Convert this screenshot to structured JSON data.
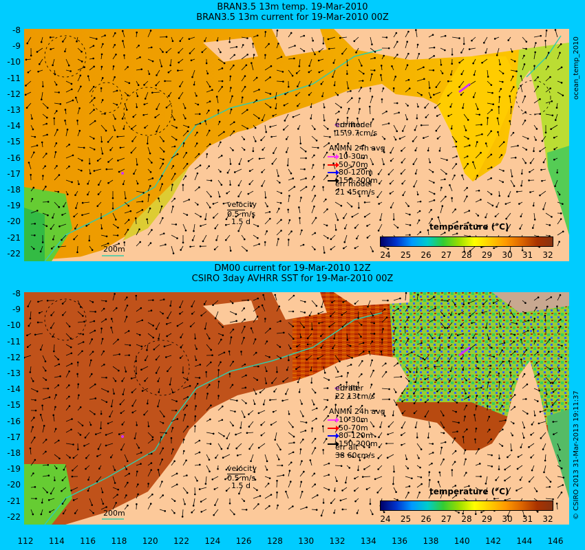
{
  "top": {
    "title1": "BRAN3.5 13m temp. 19-Mar-2010",
    "title2": "BRAN3.5 13m current for 19-Mar-2010 00Z",
    "drifter_label": "drifter",
    "err_label": "err model",
    "err_value": "15 9.7cm/s",
    "anmn_title": "ANMN 24h avg",
    "depth_bins": [
      "10-30m",
      "50-70m",
      "80-120m",
      "150-200m"
    ],
    "err2_label": "err model",
    "err2_value": "21 45cm/s"
  },
  "bottom": {
    "title1": "DM00 current for 19-Mar-2010 12Z",
    "title2": "CSIRO 3day AVHRR SST for 19-Mar-2010 00Z",
    "drifter_label": "drifter",
    "err_label": "err alt",
    "err_value": "22 13cm/s",
    "anmn_title": "ANMN 24h avg",
    "depth_bins": [
      "10-30m",
      "50-70m",
      "80-120m",
      "150-200m"
    ],
    "err2_label": "err alt",
    "err2_value": "38 60cm/s"
  },
  "velocity": {
    "label": "velocity",
    "scale": "0.5 m/s",
    "duration": "1.5 d"
  },
  "contour_label": "200m",
  "colorbar": {
    "title": "temperature (°C)",
    "ticks": [
      "24",
      "25",
      "26",
      "27",
      "28",
      "29",
      "30",
      "31",
      "32"
    ],
    "colors": [
      "#000066",
      "#0033cc",
      "#0099ff",
      "#00cccc",
      "#33cc33",
      "#99dd00",
      "#ffff00",
      "#ffcc00",
      "#ff9900",
      "#dd6600",
      "#aa3300",
      "#883311"
    ]
  },
  "y_ticks": [
    "-8",
    "-9",
    "-10",
    "-11",
    "-12",
    "-13",
    "-14",
    "-15",
    "-16",
    "-17",
    "-18",
    "-19",
    "-20",
    "-21",
    "-22"
  ],
  "x_ticks": [
    "112",
    "114",
    "116",
    "118",
    "120",
    "122",
    "124",
    "126",
    "128",
    "130",
    "132",
    "134",
    "136",
    "138",
    "140",
    "142",
    "144",
    "146"
  ],
  "side_label_top": "ocean_temp_2010",
  "side_label_bottom": "© CSIRO 2013  31-Mar-2013 19:11:37",
  "depth_colors": [
    "#ff33ff",
    "#ff0000",
    "#0000ff",
    "#000000"
  ],
  "drifter_color": "#cc33ff",
  "land_color": "#fcc99a",
  "contour_color": "#33ccaa"
}
